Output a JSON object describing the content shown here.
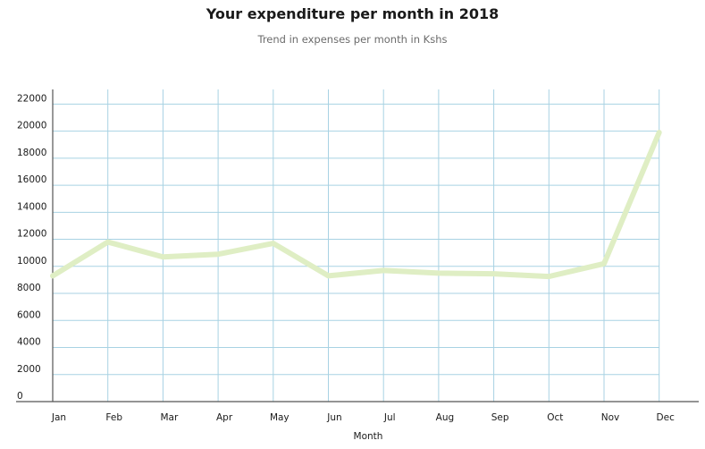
{
  "chart_data": {
    "type": "line",
    "title": "Your expenditure per month in 2018",
    "subtitle": "Trend in expenses per month in Kshs",
    "xlabel": "Month",
    "ylabel": "",
    "categories": [
      "Jan",
      "Feb",
      "Mar",
      "Apr",
      "May",
      "Jun",
      "Jul",
      "Aug",
      "Sep",
      "Oct",
      "Nov",
      "Dec"
    ],
    "values": [
      9300,
      11800,
      10700,
      10900,
      11700,
      9300,
      9700,
      9500,
      9450,
      9250,
      10200,
      19900
    ],
    "ylim": [
      0,
      23000
    ],
    "yticks": [
      0,
      2000,
      4000,
      6000,
      8000,
      10000,
      12000,
      14000,
      16000,
      18000,
      20000,
      22000
    ],
    "grid": true,
    "legend": "none",
    "colors": {
      "line": "#dfeec4",
      "grid": "#a8d2e3",
      "axis": "#555555"
    }
  }
}
